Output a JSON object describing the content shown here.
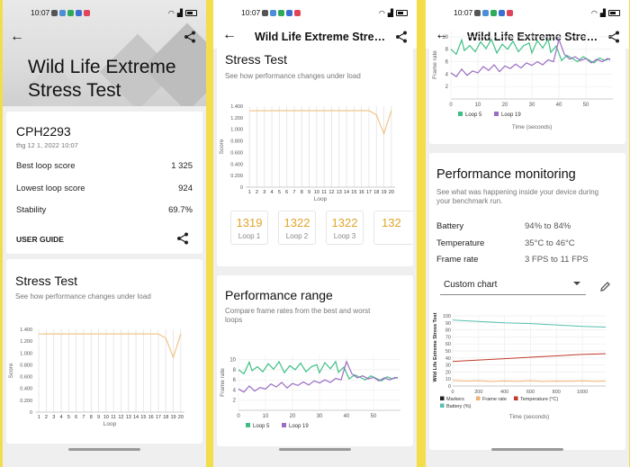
{
  "status_bar": {
    "time": "10:07"
  },
  "screen1": {
    "title_line1": "Wild Life Extreme",
    "title_line2": "Stress Test",
    "device": "CPH2293",
    "date": "thg 12 1, 2022 10:07",
    "rows": [
      {
        "label": "Best loop score",
        "value": "1 325"
      },
      {
        "label": "Lowest loop score",
        "value": "924"
      },
      {
        "label": "Stability",
        "value": "69.7%"
      }
    ],
    "user_guide": "USER GUIDE",
    "stress_title": "Stress Test",
    "stress_sub": "See how performance changes under load"
  },
  "screen2": {
    "title": "Wild Life Extreme Stress Test",
    "stress_title": "Stress Test",
    "stress_sub": "See how performance changes under load",
    "loops": [
      {
        "value": "1319",
        "label": "Loop 1"
      },
      {
        "value": "1322",
        "label": "Loop 2"
      },
      {
        "value": "1322",
        "label": "Loop 3"
      },
      {
        "value": "132",
        "label": ""
      }
    ],
    "range_title": "Performance range",
    "range_sub_1": "Compare frame rates from the best and worst",
    "range_sub_2": "loops"
  },
  "screen3": {
    "title": "Wild Life Extreme Stress Test",
    "pm_title": "Performance monitoring",
    "pm_sub_1": "See what was happening inside your device during",
    "pm_sub_2": "your benchmark run.",
    "metrics": [
      {
        "label": "Battery",
        "value": "94% to 84%"
      },
      {
        "label": "Temperature",
        "value": "35°C to 46°C"
      },
      {
        "label": "Frame rate",
        "value": "3 FPS to 11 FPS"
      }
    ],
    "custom_chart": "Custom chart"
  },
  "chart_data": [
    {
      "type": "line",
      "id": "stress-score",
      "xlabel": "Loop",
      "ylabel": "Score",
      "x": [
        1,
        2,
        3,
        4,
        5,
        6,
        7,
        8,
        9,
        10,
        11,
        12,
        13,
        14,
        15,
        16,
        17,
        18,
        19,
        20
      ],
      "yticks": [
        "0",
        "0.200",
        "0.400",
        "0.600",
        "0.800",
        "1.000",
        "1.200",
        "1.400"
      ],
      "ylim": [
        0,
        1.4
      ],
      "series": [
        {
          "values": [
            1.319,
            1.322,
            1.322,
            1.322,
            1.322,
            1.322,
            1.322,
            1.322,
            1.322,
            1.322,
            1.322,
            1.322,
            1.322,
            1.322,
            1.322,
            1.322,
            1.322,
            1.25,
            0.924,
            1.325
          ]
        }
      ],
      "color": "#f0c58a",
      "grid": true
    },
    {
      "type": "line",
      "id": "performance-range",
      "xlabel": "Time (seconds)",
      "ylabel": "Frame rate",
      "xticks": [
        0,
        10,
        20,
        30,
        40,
        50
      ],
      "yticks": [
        2,
        4,
        6,
        8,
        10
      ],
      "xlim": [
        0,
        60
      ],
      "ylim": [
        0,
        11
      ],
      "series": [
        {
          "name": "Loop 5",
          "color": "#3fbf86",
          "x": [
            0,
            2,
            4,
            5,
            7,
            9,
            11,
            13,
            15,
            17,
            19,
            21,
            23,
            25,
            27,
            29,
            30,
            32,
            34,
            36,
            37,
            39,
            41,
            43,
            45,
            47,
            49,
            51,
            53,
            55,
            57,
            59
          ],
          "y": [
            8,
            7.2,
            9.5,
            7.8,
            8.6,
            7.6,
            9.2,
            8.1,
            9.6,
            7.4,
            8.8,
            8,
            9.3,
            7.6,
            8.6,
            9,
            7.4,
            9.4,
            8.2,
            9.6,
            7.5,
            8.5,
            6.2,
            7,
            6.5,
            6,
            6.8,
            6.3,
            5.8,
            6.6,
            6.2,
            6.5
          ]
        },
        {
          "name": "Loop 19",
          "color": "#9b6cc2",
          "x": [
            0,
            2,
            4,
            6,
            8,
            10,
            12,
            14,
            16,
            18,
            20,
            22,
            24,
            26,
            28,
            30,
            32,
            34,
            36,
            38,
            40,
            42,
            44,
            46,
            48,
            50,
            52,
            54,
            56,
            58,
            59
          ],
          "y": [
            4.2,
            3.6,
            4.8,
            3.8,
            4.5,
            4.2,
            5.2,
            4.6,
            5.5,
            4.4,
            5.3,
            4.9,
            5.6,
            5,
            5.8,
            5.4,
            6,
            5.5,
            6.3,
            6,
            9.6,
            7.2,
            6.4,
            6.8,
            6.2,
            6.5,
            5.8,
            6.4,
            6,
            6.5,
            6.3
          ]
        }
      ],
      "grid": true
    },
    {
      "type": "line",
      "id": "custom-chart",
      "xlabel": "Time (seconds)",
      "ylabel": "Wild Life Extreme Stress Test",
      "xticks": [
        0,
        200,
        400,
        600,
        800,
        1000
      ],
      "yticks": [
        0,
        10,
        20,
        30,
        40,
        50,
        60,
        70,
        80,
        90,
        100
      ],
      "xlim": [
        0,
        1180
      ],
      "ylim": [
        0,
        100
      ],
      "series": [
        {
          "name": "Markers",
          "color": "#222222"
        },
        {
          "name": "Frame rate",
          "color": "#f0b070",
          "x": [
            0,
            100,
            200,
            300,
            400,
            500,
            600,
            700,
            800,
            900,
            1000,
            1100,
            1180
          ],
          "y": [
            8,
            7,
            7.5,
            6.5,
            7.2,
            6.8,
            7.6,
            6.6,
            7,
            6.9,
            7.3,
            6.7,
            7
          ]
        },
        {
          "name": "Temperature (°C)",
          "color": "#c0392b",
          "x": [
            0,
            200,
            400,
            600,
            800,
            1000,
            1180
          ],
          "y": [
            35,
            37,
            39,
            41,
            43,
            45,
            46
          ]
        },
        {
          "name": "Battery (%)",
          "color": "#56c0b0",
          "x": [
            0,
            200,
            400,
            600,
            800,
            1000,
            1180
          ],
          "y": [
            94,
            92,
            90,
            89,
            87,
            85,
            84
          ]
        }
      ],
      "grid": true
    }
  ]
}
